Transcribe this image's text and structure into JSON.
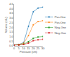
{
  "chart_data": {
    "type": "line",
    "xlabel": "Pressure (cm)",
    "ylabel": "Volume (mL)",
    "x": [
      0,
      5,
      10,
      15,
      20,
      25,
      30
    ],
    "xlim": [
      0,
      30
    ],
    "ylim": [
      0,
      4.5
    ],
    "xticks": [
      0,
      5,
      10,
      15,
      20,
      25,
      30
    ],
    "yticks": [
      {
        "value": 0,
        "label": "0.0"
      },
      0.5,
      {
        "value": 1.0,
        "label": "1.0"
      },
      1.5,
      {
        "value": 2.0,
        "label": "2.0"
      },
      2.5,
      {
        "value": 3.0,
        "label": "3.0"
      },
      3.5,
      {
        "value": 4.0,
        "label": "4.0"
      },
      4.5
    ],
    "series": [
      {
        "name": "Pos-One",
        "values": [
          0.1,
          0.15,
          0.35,
          2.1,
          3.65,
          4.05,
          4.15
        ],
        "marker": "diamond",
        "line_style": "solid"
      },
      {
        "name": "Pos-One",
        "values": [
          0.1,
          0.15,
          0.28,
          1.1,
          2.25,
          2.6,
          2.7
        ],
        "marker": "circle",
        "line_style": "solid"
      },
      {
        "name": "Neg-One",
        "values": [
          0.1,
          0.12,
          0.18,
          0.45,
          0.8,
          0.95,
          1.0
        ],
        "marker": "square",
        "line_style": "solid"
      },
      {
        "name": "Neg-One",
        "values": [
          0.08,
          0.1,
          0.14,
          0.3,
          0.55,
          0.65,
          0.7
        ],
        "marker": "square",
        "line_style": "solid"
      }
    ],
    "grid": false,
    "legend": "right"
  }
}
